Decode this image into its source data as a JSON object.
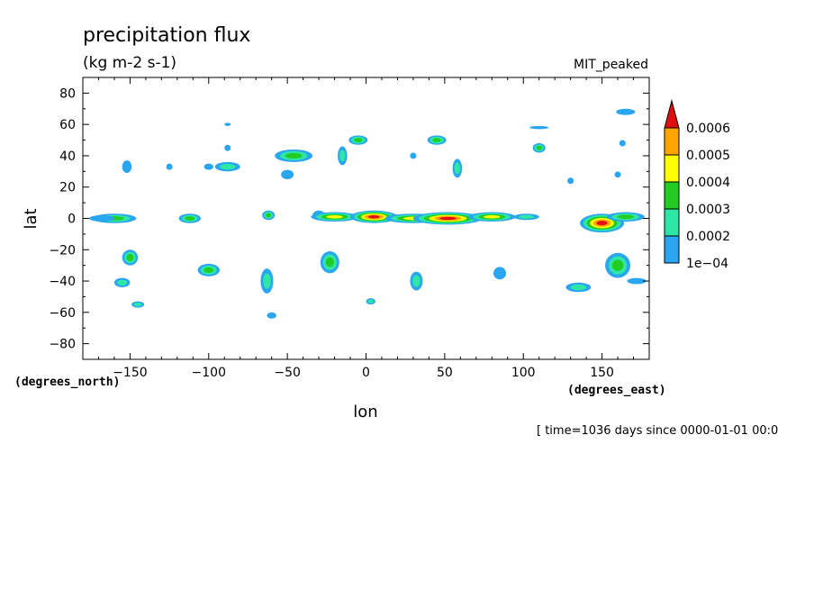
{
  "chart_data": {
    "type": "heatmap",
    "title": "precipitation flux",
    "subtitle": "(kg m-2 s-1)",
    "dataset": "MIT_peaked",
    "xlabel": "lon",
    "ylabel": "lat",
    "xunits": "(degrees_east)",
    "yunits": "(degrees_north)",
    "xlim": [
      -180,
      180
    ],
    "ylim": [
      -90,
      90
    ],
    "xticks": [
      -150,
      -100,
      -50,
      0,
      50,
      100,
      150
    ],
    "yticks": [
      80,
      60,
      40,
      20,
      0,
      -20,
      -40,
      -60,
      -80
    ],
    "footer": "[ time=1036 days since 0000-01-01 00:0",
    "colorbar": {
      "levels": [
        "1e-04",
        "0.0002",
        "0.0003",
        "0.0004",
        "0.0005",
        "0.0006"
      ],
      "colors": [
        "#2aa6f0",
        "#2ee6a6",
        "#22cc22",
        "#ffff00",
        "#ffa500",
        "#e01010"
      ]
    },
    "features": [
      {
        "lon": -160,
        "lat": 0,
        "rlon": 14,
        "rlat": 3,
        "peak": 3
      },
      {
        "lon": -152,
        "lat": 33,
        "rlon": 3,
        "rlat": 4,
        "peak": 1
      },
      {
        "lon": -150,
        "lat": -25,
        "rlon": 5,
        "rlat": 5,
        "peak": 3
      },
      {
        "lon": -155,
        "lat": -41,
        "rlon": 5,
        "rlat": 3,
        "peak": 2
      },
      {
        "lon": -145,
        "lat": -55,
        "rlon": 4,
        "rlat": 2,
        "peak": 2
      },
      {
        "lon": -125,
        "lat": 33,
        "rlon": 2,
        "rlat": 2,
        "peak": 1
      },
      {
        "lon": -112,
        "lat": 0,
        "rlon": 7,
        "rlat": 3,
        "peak": 3
      },
      {
        "lon": -100,
        "lat": -33,
        "rlon": 7,
        "rlat": 4,
        "peak": 3
      },
      {
        "lon": -88,
        "lat": 33,
        "rlon": 8,
        "rlat": 3,
        "peak": 2
      },
      {
        "lon": -100,
        "lat": 33,
        "rlon": 3,
        "rlat": 2,
        "peak": 1
      },
      {
        "lon": -88,
        "lat": 60,
        "rlon": 2,
        "rlat": 1,
        "peak": 1
      },
      {
        "lon": -88,
        "lat": 45,
        "rlon": 2,
        "rlat": 2,
        "peak": 1
      },
      {
        "lon": -63,
        "lat": -40,
        "rlon": 4,
        "rlat": 8,
        "peak": 2
      },
      {
        "lon": -62,
        "lat": 2,
        "rlon": 4,
        "rlat": 3,
        "peak": 3
      },
      {
        "lon": -46,
        "lat": 40,
        "rlon": 12,
        "rlat": 4,
        "peak": 3
      },
      {
        "lon": -50,
        "lat": 28,
        "rlon": 4,
        "rlat": 3,
        "peak": 1
      },
      {
        "lon": -60,
        "lat": -62,
        "rlon": 3,
        "rlat": 2,
        "peak": 1
      },
      {
        "lon": -30,
        "lat": 2,
        "rlon": 4,
        "rlat": 3,
        "peak": 1
      },
      {
        "lon": -20,
        "lat": 1,
        "rlon": 15,
        "rlat": 3,
        "peak": 4
      },
      {
        "lon": 5,
        "lat": 1,
        "rlon": 15,
        "rlat": 4,
        "peak": 6
      },
      {
        "lon": 30,
        "lat": 0,
        "rlon": 18,
        "rlat": 3,
        "peak": 4
      },
      {
        "lon": 52,
        "lat": 0,
        "rlon": 22,
        "rlat": 4,
        "peak": 6
      },
      {
        "lon": 80,
        "lat": 1,
        "rlon": 15,
        "rlat": 3,
        "peak": 4
      },
      {
        "lon": 102,
        "lat": 1,
        "rlon": 8,
        "rlat": 2,
        "peak": 2
      },
      {
        "lon": -23,
        "lat": -28,
        "rlon": 6,
        "rlat": 7,
        "peak": 3
      },
      {
        "lon": -5,
        "lat": 50,
        "rlon": 6,
        "rlat": 3,
        "peak": 3
      },
      {
        "lon": -15,
        "lat": 40,
        "rlon": 3,
        "rlat": 6,
        "peak": 2
      },
      {
        "lon": 45,
        "lat": 50,
        "rlon": 6,
        "rlat": 3,
        "peak": 3
      },
      {
        "lon": 58,
        "lat": 32,
        "rlon": 3,
        "rlat": 6,
        "peak": 2
      },
      {
        "lon": 30,
        "lat": 40,
        "rlon": 2,
        "rlat": 2,
        "peak": 1
      },
      {
        "lon": 3,
        "lat": -53,
        "rlon": 3,
        "rlat": 2,
        "peak": 2
      },
      {
        "lon": 32,
        "lat": -40,
        "rlon": 4,
        "rlat": 6,
        "peak": 2
      },
      {
        "lon": 85,
        "lat": -35,
        "rlon": 4,
        "rlat": 4,
        "peak": 1
      },
      {
        "lon": 110,
        "lat": 45,
        "rlon": 4,
        "rlat": 3,
        "peak": 3
      },
      {
        "lon": 110,
        "lat": 58,
        "rlon": 6,
        "rlat": 1,
        "peak": 1
      },
      {
        "lon": 130,
        "lat": 24,
        "rlon": 2,
        "rlat": 2,
        "peak": 1
      },
      {
        "lon": 135,
        "lat": -44,
        "rlon": 8,
        "rlat": 3,
        "peak": 2
      },
      {
        "lon": 150,
        "lat": -3,
        "rlon": 14,
        "rlat": 6,
        "peak": 6
      },
      {
        "lon": 165,
        "lat": 1,
        "rlon": 12,
        "rlat": 3,
        "peak": 3
      },
      {
        "lon": 160,
        "lat": -30,
        "rlon": 8,
        "rlat": 8,
        "peak": 3
      },
      {
        "lon": 172,
        "lat": -40,
        "rlon": 6,
        "rlat": 2,
        "peak": 1
      },
      {
        "lon": 163,
        "lat": 48,
        "rlon": 2,
        "rlat": 2,
        "peak": 1
      },
      {
        "lon": 165,
        "lat": 68,
        "rlon": 6,
        "rlat": 2,
        "peak": 1
      },
      {
        "lon": 160,
        "lat": 28,
        "rlon": 2,
        "rlat": 2,
        "peak": 1
      },
      {
        "lon": -168,
        "lat": 0,
        "rlon": 8,
        "rlat": 2,
        "peak": 1
      }
    ]
  }
}
